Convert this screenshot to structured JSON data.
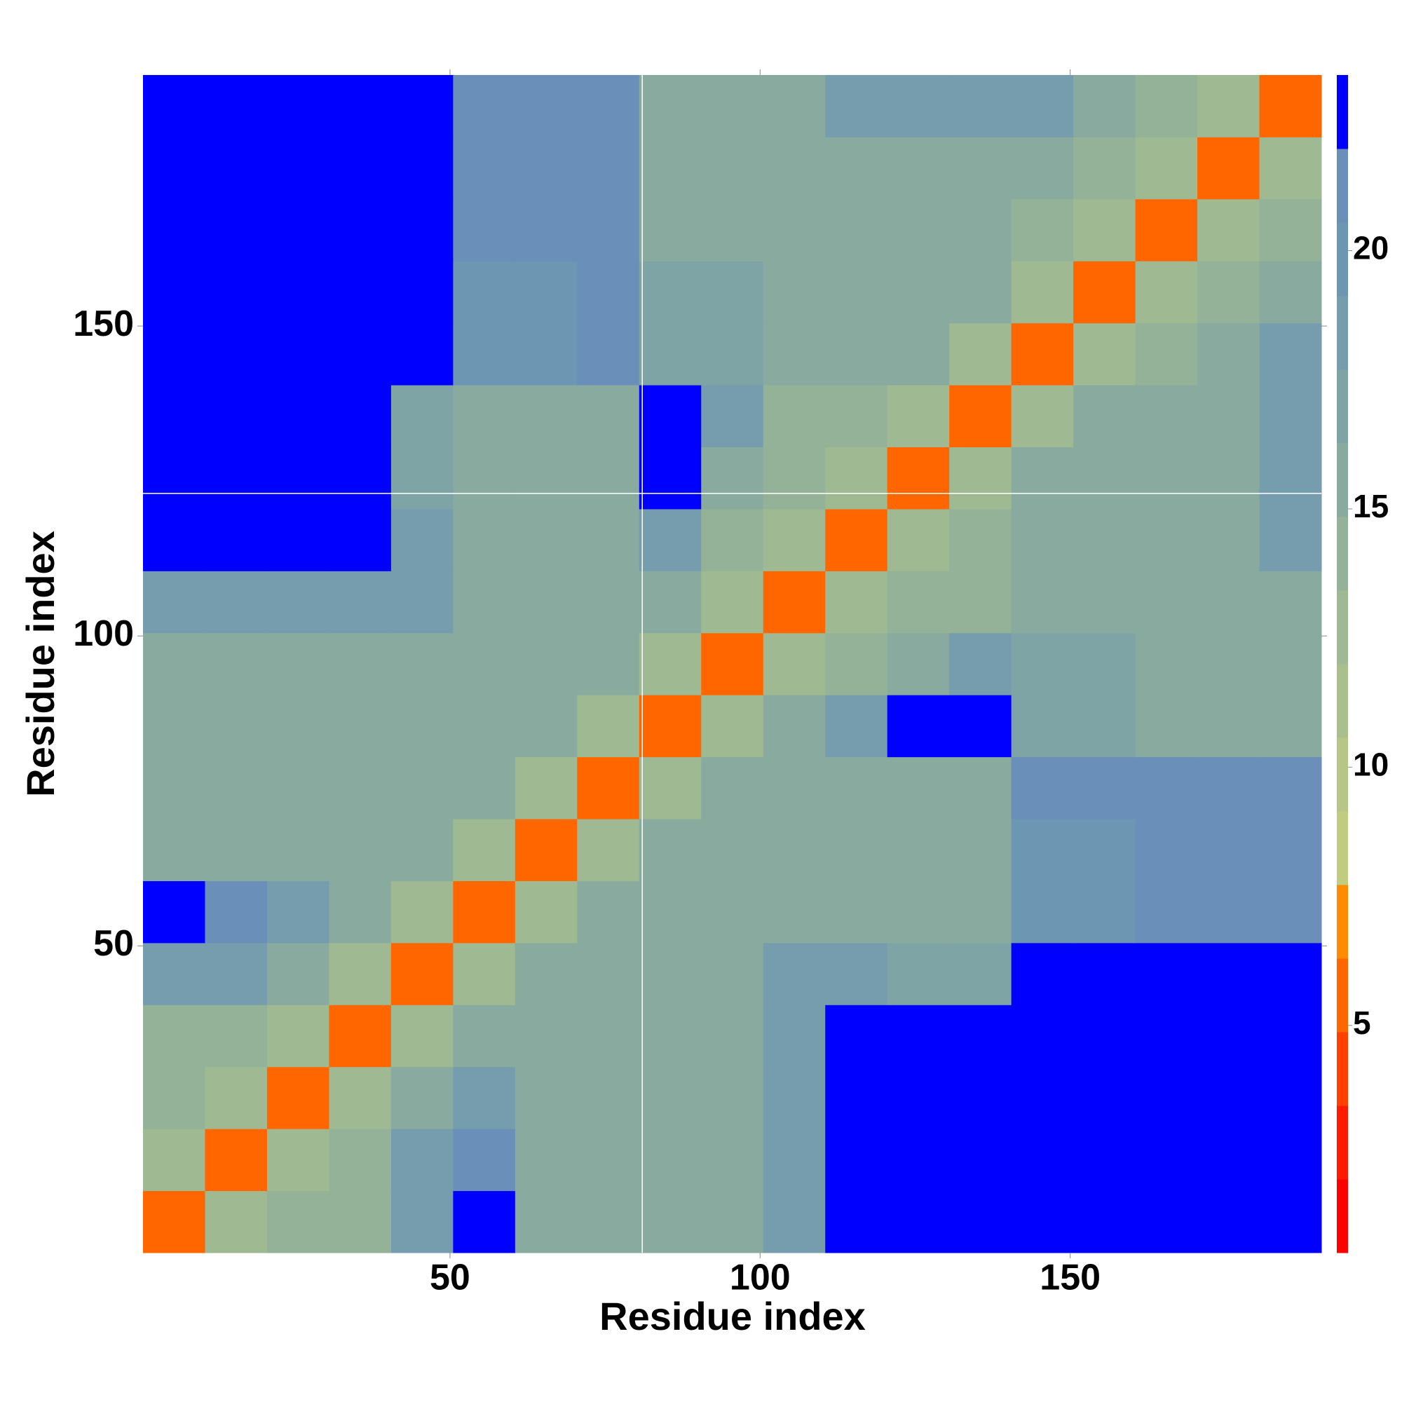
{
  "chart_data": {
    "type": "heatmap",
    "xlabel": "Residue index",
    "ylabel": "Residue index",
    "xlim": [
      0.5,
      190.5
    ],
    "ylim": [
      0.5,
      190.5
    ],
    "xticks": [
      50,
      100,
      150
    ],
    "yticks": [
      50,
      100,
      150
    ],
    "xbins": [
      0.5,
      10.5,
      20.5,
      30.5,
      40.5,
      50.5,
      60.5,
      70.5,
      80.5,
      90.5,
      100.5,
      110.5,
      120.5,
      130.5,
      140.5,
      150.5,
      160.5,
      170.5,
      180.5,
      190.5
    ],
    "ybins": [
      0.5,
      10.5,
      20.5,
      30.5,
      40.5,
      50.5,
      60.5,
      70.5,
      80.5,
      90.5,
      100.5,
      110.5,
      120.5,
      130.5,
      140.5,
      150.5,
      160.5,
      170.5,
      180.5,
      190.5
    ],
    "z": [
      [
        6,
        12,
        14,
        14,
        18,
        23,
        16,
        16,
        16,
        16,
        18,
        23,
        23,
        23,
        23,
        23,
        23,
        23,
        23
      ],
      [
        12,
        6,
        12,
        14,
        18,
        21,
        16,
        15,
        15,
        15,
        18,
        23,
        23,
        23,
        23,
        23,
        23,
        23,
        23
      ],
      [
        14,
        12,
        6,
        12,
        16,
        19,
        16,
        15,
        15,
        15,
        18,
        23,
        23,
        23,
        23,
        23,
        23,
        23,
        23
      ],
      [
        14,
        14,
        12,
        6,
        12,
        16,
        16,
        15,
        15,
        15,
        18,
        23,
        23,
        23,
        23,
        23,
        23,
        23,
        23
      ],
      [
        18,
        18,
        16,
        12,
        6,
        12,
        16,
        16,
        16,
        16,
        18,
        19,
        17,
        17,
        23,
        23,
        23,
        23,
        23
      ],
      [
        23,
        21,
        19,
        16,
        12,
        6,
        12,
        16,
        16,
        16,
        16,
        16,
        16,
        16,
        20,
        20,
        21,
        21,
        21
      ],
      [
        16,
        16,
        16,
        16,
        16,
        12,
        6,
        12,
        16,
        16,
        16,
        16,
        16,
        16,
        20,
        20,
        21,
        21,
        21
      ],
      [
        16,
        15,
        15,
        15,
        16,
        16,
        12,
        6,
        12,
        16,
        16,
        16,
        16,
        16,
        21,
        21,
        21,
        21,
        21
      ],
      [
        16,
        15,
        15,
        15,
        16,
        16,
        16,
        12,
        6,
        12,
        16,
        19,
        23,
        23,
        17,
        17,
        15,
        15,
        15
      ],
      [
        16,
        15,
        15,
        15,
        16,
        16,
        16,
        16,
        12,
        6,
        12,
        14,
        15,
        18,
        17,
        17,
        15,
        15,
        15
      ],
      [
        18,
        18,
        18,
        18,
        18,
        16,
        16,
        16,
        16,
        12,
        6,
        12,
        14,
        14,
        16,
        16,
        15,
        15,
        15
      ],
      [
        23,
        23,
        23,
        23,
        19,
        16,
        16,
        16,
        19,
        14,
        12,
        6,
        12,
        14,
        15,
        15,
        15,
        15,
        19
      ],
      [
        23,
        23,
        23,
        23,
        17,
        16,
        16,
        16,
        23,
        15,
        14,
        12,
        6,
        12,
        15,
        15,
        15,
        15,
        19
      ],
      [
        23,
        23,
        23,
        23,
        17,
        16,
        16,
        16,
        23,
        18,
        14,
        14,
        12,
        6,
        12,
        15,
        15,
        15,
        18
      ],
      [
        23,
        23,
        23,
        23,
        23,
        20,
        20,
        21,
        17,
        17,
        16,
        15,
        15,
        12,
        6,
        12,
        14,
        15,
        18
      ],
      [
        23,
        23,
        23,
        23,
        23,
        20,
        20,
        21,
        17,
        17,
        16,
        15,
        15,
        15,
        12,
        6,
        12,
        14,
        15
      ],
      [
        23,
        23,
        23,
        23,
        23,
        21,
        21,
        21,
        15,
        15,
        15,
        15,
        15,
        15,
        14,
        12,
        6,
        12,
        14
      ],
      [
        23,
        23,
        23,
        23,
        23,
        21,
        21,
        21,
        15,
        15,
        15,
        15,
        15,
        15,
        15,
        14,
        12,
        6,
        12
      ],
      [
        23,
        23,
        23,
        23,
        23,
        21,
        21,
        21,
        15,
        15,
        15,
        19,
        19,
        18,
        18,
        15,
        14,
        12,
        6
      ]
    ],
    "zlim": [
      0.6,
      23.4
    ],
    "zticks": [
      5,
      10,
      15,
      20
    ],
    "colors": [
      "#ff0000",
      "#ff1a00",
      "#ff4000",
      "#ff6600",
      "#ff8c00",
      "#c2cc80",
      "#b6c686",
      "#aabf8c",
      "#9fb992",
      "#94b298",
      "#89ab9f",
      "#7fa4a6",
      "#769dad",
      "#6d96b3",
      "#6a8fb8",
      "#0000ff"
    ],
    "crosshair": {
      "x": 81,
      "y": 123
    }
  }
}
